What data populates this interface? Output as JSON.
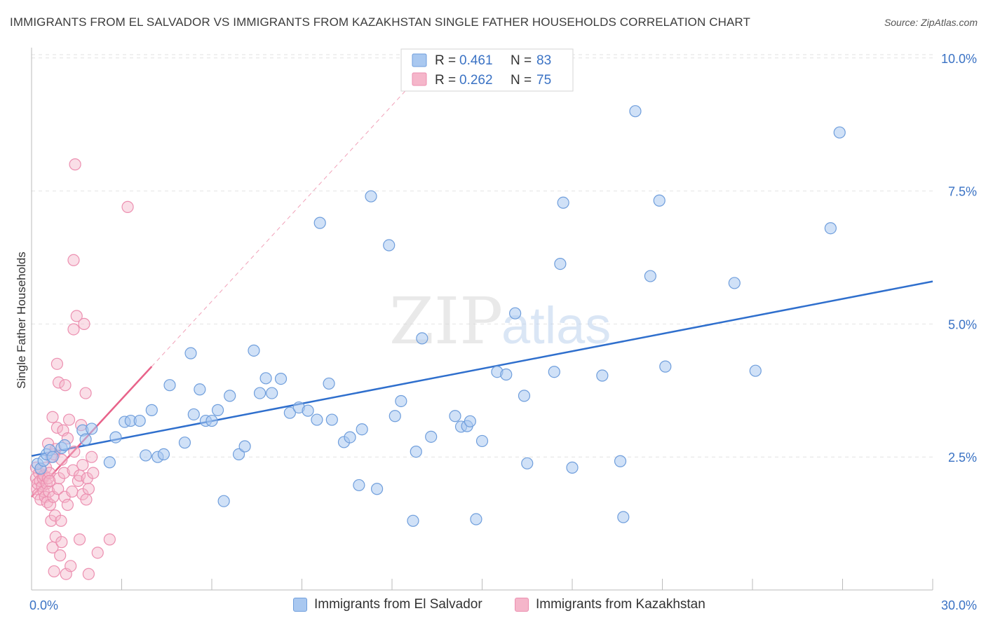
{
  "title": "IMMIGRANTS FROM EL SALVADOR VS IMMIGRANTS FROM KAZAKHSTAN SINGLE FATHER HOUSEHOLDS CORRELATION CHART",
  "source": "Source: ZipAtlas.com",
  "watermark": {
    "zip": "ZIP",
    "atlas": "atlas"
  },
  "colors": {
    "blue_fill": "#a9c8f0",
    "blue_stroke": "#6f9edc",
    "blue_line": "#2f6fcd",
    "pink_fill": "#f5b6ca",
    "pink_stroke": "#ec8fb0",
    "pink_line": "#e8638a",
    "axis_text": "#3a72c4",
    "grid": "#e2e2e2"
  },
  "stats_legend": {
    "r_label": "R =",
    "n_label": "N =",
    "rows": [
      {
        "r": "0.461",
        "n": "83"
      },
      {
        "r": "0.262",
        "n": "75"
      }
    ]
  },
  "chart_data": {
    "type": "scatter",
    "title": "IMMIGRANTS FROM EL SALVADOR VS IMMIGRANTS FROM KAZAKHSTAN SINGLE FATHER HOUSEHOLDS CORRELATION CHART",
    "xlabel": "",
    "ylabel": "Single Father Households",
    "xlim": [
      0,
      30
    ],
    "ylim": [
      0,
      10.3
    ],
    "x_tick_labels": [
      "0.0%",
      "30.0%"
    ],
    "y_ticks": [
      2.5,
      5.0,
      7.5,
      10.0
    ],
    "y_tick_labels": [
      "2.5%",
      "5.0%",
      "7.5%",
      "10.0%"
    ],
    "grid": true,
    "legend_placement": "bottom-center",
    "series": [
      {
        "name": "Immigrants from El Salvador",
        "r": 0.461,
        "n": 83,
        "trend": {
          "x": [
            0,
            30
          ],
          "y": [
            2.52,
            5.8
          ],
          "style": "solid"
        },
        "points": [
          [
            0.2,
            2.37
          ],
          [
            0.3,
            2.28
          ],
          [
            0.4,
            2.43
          ],
          [
            0.5,
            2.55
          ],
          [
            0.6,
            2.63
          ],
          [
            0.7,
            2.5
          ],
          [
            1.0,
            2.67
          ],
          [
            1.1,
            2.72
          ],
          [
            1.7,
            3.0
          ],
          [
            1.8,
            2.83
          ],
          [
            2.0,
            3.03
          ],
          [
            2.6,
            2.4
          ],
          [
            2.8,
            2.87
          ],
          [
            3.1,
            3.16
          ],
          [
            3.3,
            3.18
          ],
          [
            3.6,
            3.18
          ],
          [
            3.8,
            2.53
          ],
          [
            4.0,
            3.38
          ],
          [
            4.2,
            2.5
          ],
          [
            4.4,
            2.55
          ],
          [
            4.6,
            3.85
          ],
          [
            5.1,
            2.77
          ],
          [
            5.3,
            4.45
          ],
          [
            5.4,
            3.3
          ],
          [
            5.6,
            3.77
          ],
          [
            5.8,
            3.18
          ],
          [
            6.0,
            3.18
          ],
          [
            6.2,
            3.38
          ],
          [
            6.4,
            1.67
          ],
          [
            6.6,
            3.65
          ],
          [
            6.9,
            2.55
          ],
          [
            7.1,
            2.7
          ],
          [
            7.4,
            4.5
          ],
          [
            7.6,
            3.7
          ],
          [
            7.8,
            3.98
          ],
          [
            8.0,
            3.7
          ],
          [
            8.3,
            3.97
          ],
          [
            8.6,
            3.33
          ],
          [
            8.9,
            3.43
          ],
          [
            9.2,
            3.37
          ],
          [
            9.5,
            3.2
          ],
          [
            9.6,
            6.9
          ],
          [
            9.9,
            3.88
          ],
          [
            10.0,
            3.2
          ],
          [
            10.4,
            2.78
          ],
          [
            10.6,
            2.87
          ],
          [
            10.9,
            1.97
          ],
          [
            11.0,
            3.02
          ],
          [
            11.3,
            7.4
          ],
          [
            11.5,
            1.9
          ],
          [
            11.9,
            6.48
          ],
          [
            12.1,
            3.27
          ],
          [
            12.3,
            3.55
          ],
          [
            12.7,
            1.3
          ],
          [
            12.8,
            2.6
          ],
          [
            13.0,
            4.73
          ],
          [
            13.3,
            2.88
          ],
          [
            14.1,
            3.27
          ],
          [
            14.3,
            3.07
          ],
          [
            14.5,
            3.08
          ],
          [
            14.6,
            3.17
          ],
          [
            14.8,
            1.33
          ],
          [
            15.0,
            2.8
          ],
          [
            15.5,
            4.1
          ],
          [
            15.8,
            4.05
          ],
          [
            16.1,
            5.2
          ],
          [
            16.4,
            3.65
          ],
          [
            16.5,
            2.38
          ],
          [
            17.4,
            4.1
          ],
          [
            17.6,
            6.13
          ],
          [
            17.7,
            7.28
          ],
          [
            18.0,
            2.3
          ],
          [
            19.0,
            4.03
          ],
          [
            19.6,
            2.42
          ],
          [
            19.7,
            1.37
          ],
          [
            20.1,
            9.0
          ],
          [
            20.6,
            5.9
          ],
          [
            20.9,
            7.32
          ],
          [
            21.1,
            4.2
          ],
          [
            23.4,
            5.77
          ],
          [
            24.1,
            4.12
          ],
          [
            26.6,
            6.8
          ],
          [
            26.9,
            8.6
          ]
        ]
      },
      {
        "name": "Immigrants from Kazakhstan",
        "r": 0.262,
        "n": 75,
        "trend": {
          "x": [
            0,
            4.0
          ],
          "y": [
            1.75,
            4.2
          ],
          "style": "solid",
          "extended_dashed_to": [
            12.8,
            9.6
          ]
        },
        "points": [
          [
            0.15,
            2.3
          ],
          [
            0.15,
            2.1
          ],
          [
            0.18,
            1.9
          ],
          [
            0.2,
            2.0
          ],
          [
            0.22,
            1.8
          ],
          [
            0.25,
            2.2
          ],
          [
            0.28,
            2.05
          ],
          [
            0.3,
            1.7
          ],
          [
            0.32,
            2.25
          ],
          [
            0.35,
            1.95
          ],
          [
            0.38,
            2.1
          ],
          [
            0.4,
            1.85
          ],
          [
            0.42,
            2.15
          ],
          [
            0.45,
            1.75
          ],
          [
            0.48,
            2.3
          ],
          [
            0.5,
            2.0
          ],
          [
            0.52,
            1.65
          ],
          [
            0.55,
            2.1
          ],
          [
            0.55,
            2.75
          ],
          [
            0.58,
            1.85
          ],
          [
            0.6,
            2.2
          ],
          [
            0.62,
            1.6
          ],
          [
            0.65,
            1.3
          ],
          [
            0.65,
            2.5
          ],
          [
            0.7,
            0.8
          ],
          [
            0.7,
            3.25
          ],
          [
            0.72,
            1.75
          ],
          [
            0.75,
            2.55
          ],
          [
            0.75,
            0.35
          ],
          [
            0.78,
            1.4
          ],
          [
            0.8,
            1.0
          ],
          [
            0.8,
            2.65
          ],
          [
            0.85,
            4.25
          ],
          [
            0.85,
            3.05
          ],
          [
            0.88,
            1.9
          ],
          [
            0.9,
            3.9
          ],
          [
            0.92,
            2.1
          ],
          [
            0.95,
            0.65
          ],
          [
            0.98,
            1.3
          ],
          [
            1.0,
            0.9
          ],
          [
            1.0,
            2.45
          ],
          [
            1.05,
            3.0
          ],
          [
            1.08,
            2.2
          ],
          [
            1.1,
            1.75
          ],
          [
            1.12,
            3.85
          ],
          [
            1.15,
            0.3
          ],
          [
            1.2,
            1.6
          ],
          [
            1.2,
            2.85
          ],
          [
            1.25,
            3.2
          ],
          [
            1.3,
            0.45
          ],
          [
            1.35,
            1.85
          ],
          [
            1.38,
            2.25
          ],
          [
            1.4,
            6.2
          ],
          [
            1.4,
            4.9
          ],
          [
            1.42,
            2.6
          ],
          [
            1.45,
            8.0
          ],
          [
            1.5,
            5.15
          ],
          [
            1.55,
            2.05
          ],
          [
            1.6,
            2.15
          ],
          [
            1.6,
            0.95
          ],
          [
            1.65,
            3.1
          ],
          [
            1.7,
            1.8
          ],
          [
            1.7,
            2.35
          ],
          [
            1.75,
            5.0
          ],
          [
            1.8,
            3.7
          ],
          [
            1.82,
            1.7
          ],
          [
            1.85,
            2.1
          ],
          [
            1.9,
            1.9
          ],
          [
            1.9,
            0.3
          ],
          [
            2.0,
            2.5
          ],
          [
            2.05,
            2.2
          ],
          [
            2.2,
            0.7
          ],
          [
            2.6,
            0.95
          ],
          [
            3.2,
            7.2
          ],
          [
            0.6,
            2.05
          ]
        ]
      }
    ]
  },
  "bottom_legend": [
    {
      "label": "Immigrants from El Salvador"
    },
    {
      "label": "Immigrants from Kazakhstan"
    }
  ]
}
